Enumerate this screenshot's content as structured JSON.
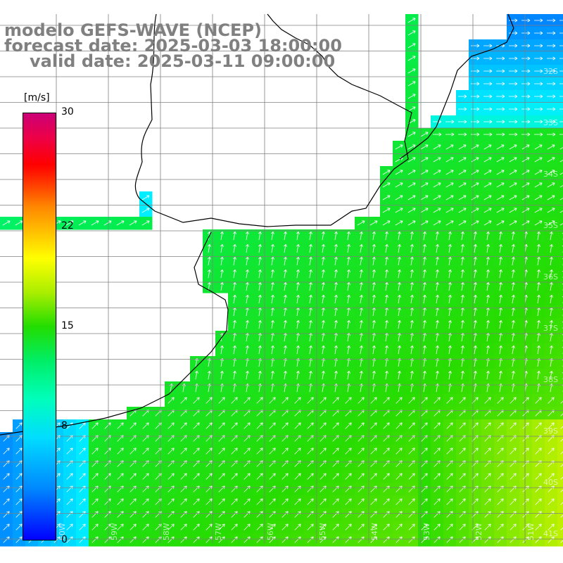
{
  "header": {
    "line1": "modelo GEFS-WAVE (NCEP)",
    "line2": "forecast date: 2025-03-03 18:00:00",
    "line3": "valid date: 2025-03-11 09:00:00"
  },
  "colorbar": {
    "unit": "[m/s]",
    "ticks": [
      {
        "label": "30",
        "value": 30
      },
      {
        "label": "22",
        "value": 22
      },
      {
        "label": "15",
        "value": 15
      },
      {
        "label": "8",
        "value": 8
      },
      {
        "label": "0",
        "value": 0
      }
    ]
  },
  "map": {
    "lat_labels": [
      "32S",
      "33S",
      "34S",
      "35S",
      "36S",
      "37S",
      "38S",
      "39S",
      "40S",
      "41S"
    ],
    "lon_labels": [
      "60W",
      "59W",
      "58W",
      "57W",
      "56W",
      "55W",
      "54W",
      "53W",
      "52W",
      "51W"
    ],
    "colors": {
      "land": "#ffffff",
      "coast": "#000000",
      "grid": "#808080",
      "arrow": "#ffffff"
    }
  }
}
